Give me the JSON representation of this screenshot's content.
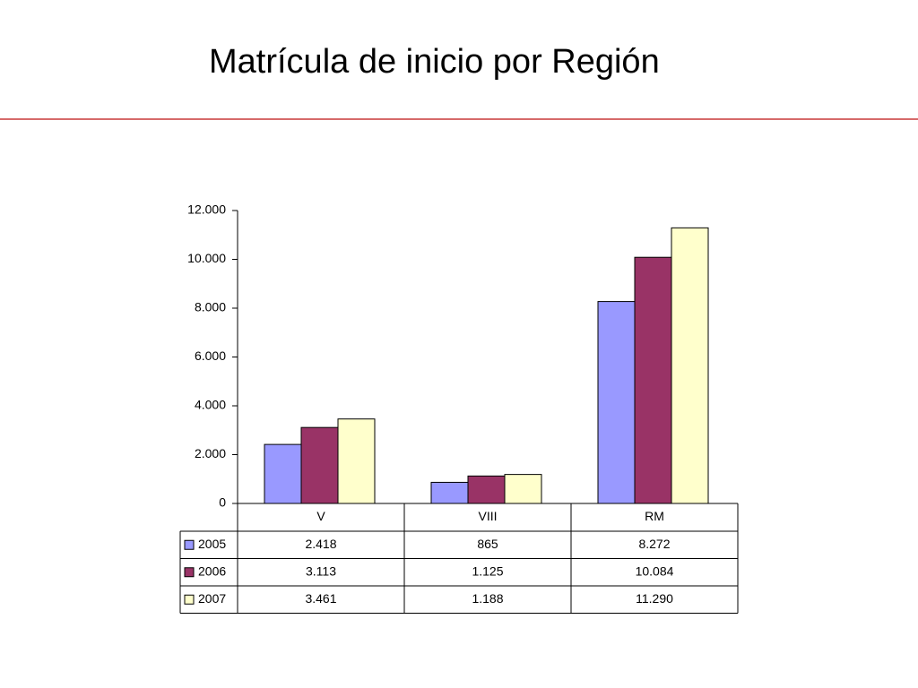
{
  "slide": {
    "title": "Matrícula de inicio por Región"
  },
  "chart_data": {
    "type": "bar",
    "title": "",
    "xlabel": "",
    "ylabel": "",
    "categories": [
      "V",
      "VIII",
      "RM"
    ],
    "series": [
      {
        "name": "2005",
        "values": [
          2418,
          865,
          8272
        ],
        "labels": [
          "2.418",
          "865",
          "8.272"
        ],
        "color": "#9999ff"
      },
      {
        "name": "2006",
        "values": [
          3113,
          1125,
          10084
        ],
        "labels": [
          "3.113",
          "1.125",
          "10.084"
        ],
        "color": "#993366"
      },
      {
        "name": "2007",
        "values": [
          3461,
          1188,
          11290
        ],
        "labels": [
          "3.461",
          "1.188",
          "11.290"
        ],
        "color": "#ffffcc"
      }
    ],
    "ylim": [
      0,
      12000
    ],
    "yticks": [
      0,
      2000,
      4000,
      6000,
      8000,
      10000,
      12000
    ],
    "ytick_labels": [
      "0",
      "2.000",
      "4.000",
      "6.000",
      "8.000",
      "10.000",
      "12.000"
    ],
    "grid": false,
    "legend": "data-table-left"
  }
}
